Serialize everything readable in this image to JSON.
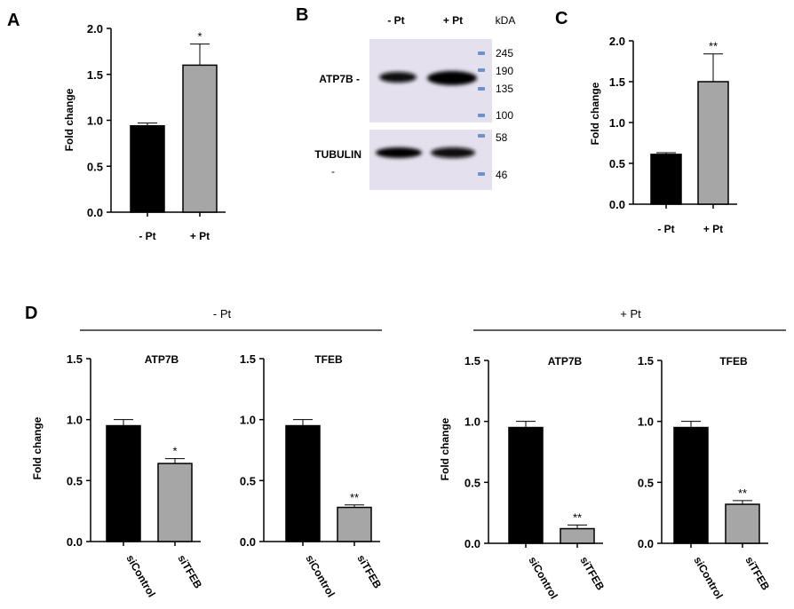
{
  "figure": {
    "panel_letters": {
      "a": "A",
      "b": "B",
      "c": "C",
      "d": "D"
    },
    "group_headers": {
      "minus": "- Pt",
      "plus": "+ Pt"
    }
  },
  "colors": {
    "black": "#000000",
    "gray": "#a6a6a6",
    "blot_bg": "#e4e0ee",
    "ladder": "#4a78c0"
  },
  "blot": {
    "lanes": [
      "- Pt",
      "+ Pt"
    ],
    "kda_label": "kDA",
    "top_label": "ATP7B -",
    "bottom_label_1": "TUBULIN",
    "bottom_label_2": "-",
    "top_markers": [
      "245",
      "190",
      "135",
      "100"
    ],
    "bottom_markers": [
      "58",
      "46"
    ]
  },
  "chart_data": [
    {
      "id": "A",
      "type": "bar",
      "title": "",
      "xlabel": "",
      "ylabel": "Fold change",
      "ylim": [
        0,
        2.0
      ],
      "yticks": [
        "0.0",
        "0.5",
        "1.0",
        "1.5",
        "2.0"
      ],
      "categories": [
        "- Pt",
        "+ Pt"
      ],
      "values": [
        0.94,
        1.6
      ],
      "errors": [
        0.03,
        0.23
      ],
      "significance": [
        "",
        "*"
      ],
      "colors": [
        "#000000",
        "#a6a6a6"
      ]
    },
    {
      "id": "C",
      "type": "bar",
      "title": "",
      "xlabel": "",
      "ylabel": "Fold change",
      "ylim": [
        0,
        2.0
      ],
      "yticks": [
        "0.0",
        "0.5",
        "1.0",
        "1.5",
        "2.0"
      ],
      "categories": [
        "- Pt",
        "+ Pt"
      ],
      "values": [
        0.61,
        1.5
      ],
      "errors": [
        0.02,
        0.34
      ],
      "significance": [
        "",
        "**"
      ],
      "colors": [
        "#000000",
        "#a6a6a6"
      ]
    },
    {
      "id": "D1",
      "type": "bar",
      "group": "- Pt",
      "title": "ATP7B",
      "xlabel": "",
      "ylabel": "Fold change",
      "ylim": [
        0,
        1.5
      ],
      "yticks": [
        "0.0",
        "0.5",
        "1.0",
        "1.5"
      ],
      "categories": [
        "siControl",
        "siTFEB"
      ],
      "values": [
        0.95,
        0.64
      ],
      "errors": [
        0.05,
        0.04
      ],
      "significance": [
        "",
        "*"
      ],
      "colors": [
        "#000000",
        "#a6a6a6"
      ]
    },
    {
      "id": "D2",
      "type": "bar",
      "group": "- Pt",
      "title": "TFEB",
      "xlabel": "",
      "ylabel": "",
      "ylim": [
        0,
        1.5
      ],
      "yticks": [
        "0.0",
        "0.5",
        "1.0",
        "1.5"
      ],
      "categories": [
        "siControl",
        "siTFEB"
      ],
      "values": [
        0.95,
        0.28
      ],
      "errors": [
        0.05,
        0.02
      ],
      "significance": [
        "",
        "**"
      ],
      "colors": [
        "#000000",
        "#a6a6a6"
      ]
    },
    {
      "id": "D3",
      "type": "bar",
      "group": "+ Pt",
      "title": "ATP7B",
      "xlabel": "",
      "ylabel": "Fold change",
      "ylim": [
        0,
        1.5
      ],
      "yticks": [
        "0.0",
        "0.5",
        "1.0",
        "1.5"
      ],
      "categories": [
        "siControl",
        "siTFEB"
      ],
      "values": [
        0.95,
        0.12
      ],
      "errors": [
        0.05,
        0.03
      ],
      "significance": [
        "",
        "**"
      ],
      "colors": [
        "#000000",
        "#a6a6a6"
      ]
    },
    {
      "id": "D4",
      "type": "bar",
      "group": "+ Pt",
      "title": "TFEB",
      "xlabel": "",
      "ylabel": "",
      "ylim": [
        0,
        1.5
      ],
      "yticks": [
        "0.0",
        "0.5",
        "1.0",
        "1.5"
      ],
      "categories": [
        "siControl",
        "siTFEB"
      ],
      "values": [
        0.95,
        0.32
      ],
      "errors": [
        0.05,
        0.03
      ],
      "significance": [
        "",
        "**"
      ],
      "colors": [
        "#000000",
        "#a6a6a6"
      ]
    }
  ]
}
